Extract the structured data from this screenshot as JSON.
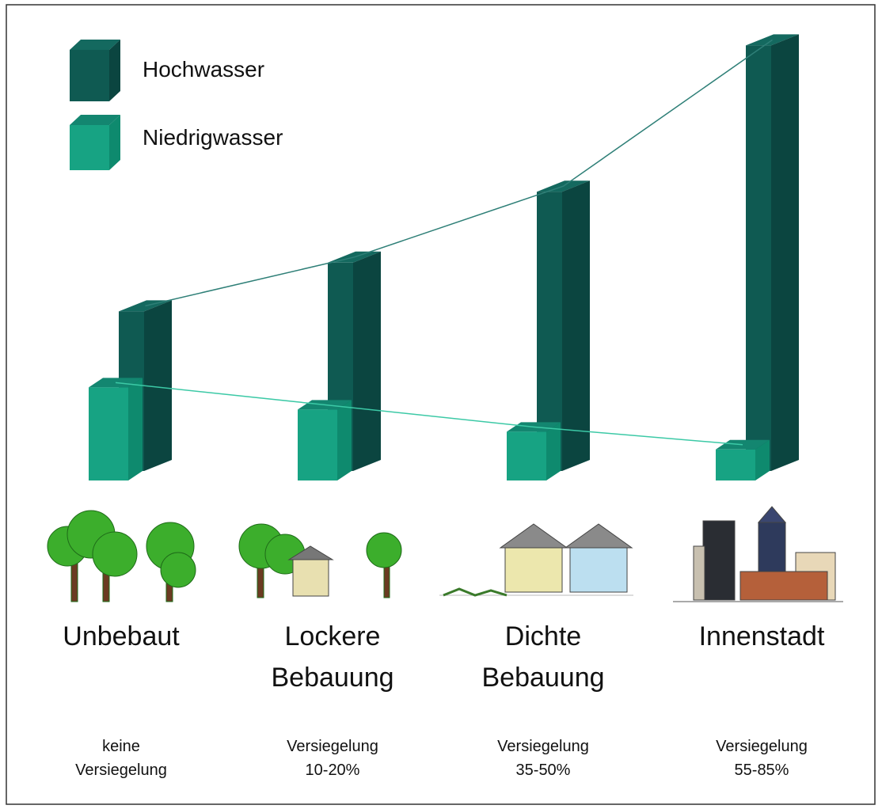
{
  "chart_data": {
    "type": "bar3d",
    "categories": [
      "Unbebaut",
      "Lockere\nBebauung",
      "Dichte\nBebauung",
      "Innenstadt"
    ],
    "sublabels": [
      "keine\nVersiegelung",
      "Versiegelung\n10-20%",
      "Versiegelung\n35-50%",
      "Versiegelung\n55-85%"
    ],
    "series": [
      {
        "name": "Hochwasser",
        "color": "#0f5a52",
        "values": [
          36,
          47,
          63,
          96
        ]
      },
      {
        "name": "Niedrigwasser",
        "color": "#17a383",
        "values": [
          21,
          16,
          11,
          7
        ]
      }
    ],
    "ylim": [
      0,
      100
    ],
    "legend": "top-left"
  }
}
